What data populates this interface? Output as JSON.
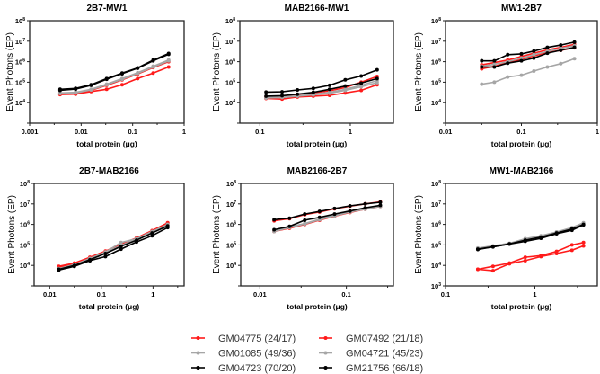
{
  "colors": {
    "red": "#ff1a1a",
    "gray": "#a6a6a6",
    "black": "#000000"
  },
  "legend": [
    {
      "label": "GM04775 (24/17)",
      "color": "red"
    },
    {
      "label": "GM07492 (21/18)",
      "color": "red"
    },
    {
      "label": "GM01085 (49/36)",
      "color": "gray"
    },
    {
      "label": "GM04721 (45/23)",
      "color": "gray"
    },
    {
      "label": "GM04723 (70/20)",
      "color": "black"
    },
    {
      "label": "GM21756 (66/18)",
      "color": "black"
    }
  ],
  "chart_data": [
    {
      "type": "line",
      "title": "2B7-MW1",
      "xlabel": "total protein (μg)",
      "ylabel": "Event Photons (EP)",
      "xscale": "log",
      "yscale": "log",
      "xlim": [
        0.001,
        1
      ],
      "ylim": [
        1000,
        100000000
      ],
      "xticks": [
        0.001,
        0.01,
        0.1,
        1
      ],
      "xtick_labels": [
        "0.001",
        "0.01",
        "0.1",
        "1"
      ],
      "ytick_exponents": [
        4,
        5,
        6,
        7,
        8
      ],
      "x": [
        0.0039,
        0.0078,
        0.0156,
        0.03125,
        0.0625,
        0.125,
        0.25,
        0.5
      ],
      "series": [
        {
          "name": "GM04775 (24/17)",
          "values": [
            25000,
            26000,
            35000,
            45000,
            75000,
            150000,
            280000,
            550000
          ]
        },
        {
          "name": "GM07492 (21/18)",
          "values": [
            26000,
            28000,
            40000,
            70000,
            130000,
            250000,
            520000,
            1000000
          ]
        },
        {
          "name": "GM01085 (49/36)",
          "values": [
            30000,
            32000,
            45000,
            80000,
            150000,
            290000,
            600000,
            1200000
          ]
        },
        {
          "name": "GM04721 (45/23)",
          "values": [
            28000,
            30000,
            42000,
            75000,
            140000,
            270000,
            550000,
            1100000
          ]
        },
        {
          "name": "GM04723 (70/20)",
          "values": [
            45000,
            50000,
            75000,
            150000,
            280000,
            500000,
            1200000,
            2500000
          ]
        },
        {
          "name": "GM21756 (66/18)",
          "values": [
            40000,
            46000,
            70000,
            140000,
            260000,
            480000,
            1100000,
            2300000
          ]
        }
      ]
    },
    {
      "type": "line",
      "title": "MAB2166-MW1",
      "xlabel": "total protein (μg)",
      "ylabel": "Event Photons (EP)",
      "xscale": "log",
      "yscale": "log",
      "xlim": [
        0.06,
        3
      ],
      "ylim": [
        1000,
        100000000
      ],
      "xticks": [
        0.1,
        1
      ],
      "xtick_labels": [
        "0.1",
        "1"
      ],
      "ytick_exponents": [
        4,
        5,
        6,
        7,
        8
      ],
      "x": [
        0.117,
        0.176,
        0.26,
        0.39,
        0.59,
        0.88,
        1.32,
        1.98
      ],
      "series": [
        {
          "name": "GM04775 (24/17)",
          "values": [
            16000,
            15000,
            19000,
            21000,
            23000,
            30000,
            40000,
            75000
          ]
        },
        {
          "name": "GM07492 (21/18)",
          "values": [
            19000,
            20000,
            24000,
            30000,
            38000,
            55000,
            100000,
            190000
          ]
        },
        {
          "name": "GM01085 (49/36)",
          "values": [
            18000,
            19000,
            22000,
            26000,
            32000,
            45000,
            70000,
            120000
          ]
        },
        {
          "name": "GM04721 (45/23)",
          "values": [
            17000,
            18000,
            21000,
            24000,
            29000,
            40000,
            60000,
            95000
          ]
        },
        {
          "name": "GM04723 (70/20)",
          "values": [
            33000,
            34000,
            42000,
            50000,
            70000,
            130000,
            200000,
            400000
          ]
        },
        {
          "name": "GM21756 (66/18)",
          "values": [
            21000,
            22000,
            26000,
            32000,
            45000,
            65000,
            90000,
            150000
          ]
        }
      ]
    },
    {
      "type": "line",
      "title": "MW1-2B7",
      "xlabel": "total protein (μg)",
      "ylabel": "Event Photons (EP)",
      "xscale": "log",
      "yscale": "log",
      "xlim": [
        0.01,
        1
      ],
      "ylim": [
        1000,
        100000000
      ],
      "xticks": [
        0.01,
        0.1,
        1
      ],
      "xtick_labels": [
        "0.01",
        "0.1",
        "1"
      ],
      "ytick_exponents": [
        4,
        5,
        6,
        7,
        8
      ],
      "x": [
        0.03,
        0.044,
        0.066,
        0.1,
        0.146,
        0.22,
        0.33,
        0.5
      ],
      "series": [
        {
          "name": "GM04775 (24/17)",
          "values": [
            450000,
            600000,
            900000,
            1300000,
            1900000,
            2800000,
            3600000,
            4800000
          ]
        },
        {
          "name": "GM07492 (21/18)",
          "values": [
            700000,
            900000,
            1200000,
            1800000,
            2600000,
            3800000,
            5000000,
            7000000
          ]
        },
        {
          "name": "GM01085 (49/36)",
          "values": [
            80000,
            100000,
            180000,
            220000,
            350000,
            550000,
            800000,
            1400000
          ]
        },
        {
          "name": "GM04721 (45/23)",
          "values": [
            600000,
            750000,
            1000000,
            1500000,
            2200000,
            3200000,
            4500000,
            6000000
          ]
        },
        {
          "name": "GM04723 (70/20)",
          "values": [
            1100000,
            1100000,
            2200000,
            2400000,
            3300000,
            5000000,
            6500000,
            9000000
          ]
        },
        {
          "name": "GM21756 (66/18)",
          "values": [
            550000,
            550000,
            850000,
            1100000,
            1500000,
            2600000,
            3600000,
            5000000
          ]
        }
      ]
    },
    {
      "type": "line",
      "title": "2B7-MAB2166",
      "xlabel": "total protein (μg)",
      "ylabel": "Event Photons (EP)",
      "xscale": "log",
      "yscale": "log",
      "xlim": [
        0.005,
        4
      ],
      "ylim": [
        1000,
        100000000
      ],
      "xticks": [
        0.01,
        0.1,
        1
      ],
      "xtick_labels": [
        "0.01",
        "0.1",
        "1"
      ],
      "ytick_exponents": [
        4,
        5,
        6,
        7,
        8
      ],
      "x": [
        0.015,
        0.03,
        0.06,
        0.12,
        0.24,
        0.48,
        0.96,
        1.92
      ],
      "series": [
        {
          "name": "GM04775 (24/17)",
          "values": [
            9000,
            13000,
            25000,
            50000,
            110000,
            220000,
            500000,
            1200000
          ]
        },
        {
          "name": "GM07492 (21/18)",
          "values": [
            8000,
            12000,
            24000,
            48000,
            100000,
            210000,
            480000,
            1150000
          ]
        },
        {
          "name": "GM01085 (49/36)",
          "values": [
            6000,
            11000,
            22000,
            45000,
            130000,
            200000,
            450000,
            1000000
          ]
        },
        {
          "name": "GM04721 (45/23)",
          "values": [
            7000,
            11000,
            21000,
            42000,
            95000,
            190000,
            420000,
            950000
          ]
        },
        {
          "name": "GM04723 (70/20)",
          "values": [
            6000,
            9000,
            17000,
            27000,
            62000,
            140000,
            280000,
            700000
          ]
        },
        {
          "name": "GM21756 (66/18)",
          "values": [
            6500,
            10000,
            19000,
            38000,
            85000,
            170000,
            380000,
            850000
          ]
        }
      ]
    },
    {
      "type": "line",
      "title": "MAB2166-2B7",
      "xlabel": "total protein (μg)",
      "ylabel": "Event Photons (EP)",
      "xscale": "log",
      "yscale": "log",
      "xlim": [
        0.006,
        0.35
      ],
      "ylim": [
        1000,
        100000000
      ],
      "xticks": [
        0.01,
        0.1
      ],
      "xtick_labels": [
        "0.01",
        "0.1"
      ],
      "ytick_exponents": [
        4,
        5,
        6,
        7,
        8
      ],
      "x": [
        0.0146,
        0.022,
        0.033,
        0.049,
        0.073,
        0.11,
        0.165,
        0.247
      ],
      "series": [
        {
          "name": "GM04775 (24/17)",
          "values": [
            450000,
            650000,
            1000000,
            1600000,
            2500000,
            3800000,
            5500000,
            7500000
          ]
        },
        {
          "name": "GM07492 (21/18)",
          "values": [
            1500000,
            1900000,
            3000000,
            4000000,
            5800000,
            7800000,
            10000000,
            12500000
          ]
        },
        {
          "name": "GM01085 (49/36)",
          "values": [
            500000,
            750000,
            1100000,
            1800000,
            2800000,
            4200000,
            6000000,
            8000000
          ]
        },
        {
          "name": "GM04721 (45/23)",
          "values": [
            450000,
            700000,
            1050000,
            1700000,
            2600000,
            4000000,
            5500000,
            7500000
          ]
        },
        {
          "name": "GM04723 (70/20)",
          "values": [
            1700000,
            2000000,
            3200000,
            4300000,
            6000000,
            8000000,
            10000000,
            12000000
          ]
        },
        {
          "name": "GM21756 (66/18)",
          "values": [
            550000,
            800000,
            1600000,
            2200000,
            3200000,
            4500000,
            6500000,
            8500000
          ]
        }
      ]
    },
    {
      "type": "line",
      "title": "MW1-MAB2166",
      "xlabel": "total protein (μg)",
      "ylabel": "Event Photons (EP)",
      "xscale": "log",
      "yscale": "log",
      "xlim": [
        0.1,
        5
      ],
      "ylim": [
        1000,
        100000000
      ],
      "xticks": [
        0.1,
        1
      ],
      "xtick_labels": [
        "0.1",
        "1"
      ],
      "ytick_exponents": [
        3,
        4,
        5,
        6,
        7,
        8
      ],
      "x": [
        0.23,
        0.34,
        0.52,
        0.78,
        1.17,
        1.75,
        2.6,
        3.5
      ],
      "series": [
        {
          "name": "GM04775 (24/17)",
          "values": [
            6500,
            5500,
            12000,
            17000,
            27000,
            38000,
            55000,
            90000
          ]
        },
        {
          "name": "GM07492 (21/18)",
          "values": [
            6500,
            9000,
            13000,
            25000,
            30000,
            48000,
            100000,
            130000
          ]
        },
        {
          "name": "GM01085 (49/36)",
          "values": [
            70000,
            90000,
            120000,
            200000,
            280000,
            430000,
            700000,
            1200000
          ]
        },
        {
          "name": "GM04721 (45/23)",
          "values": [
            65000,
            85000,
            115000,
            180000,
            260000,
            400000,
            650000,
            1100000
          ]
        },
        {
          "name": "GM04723 (70/20)",
          "values": [
            60000,
            80000,
            110000,
            150000,
            210000,
            350000,
            520000,
            950000
          ]
        },
        {
          "name": "GM21756 (66/18)",
          "values": [
            62000,
            82000,
            112000,
            170000,
            240000,
            380000,
            600000,
            1000000
          ]
        }
      ]
    }
  ]
}
